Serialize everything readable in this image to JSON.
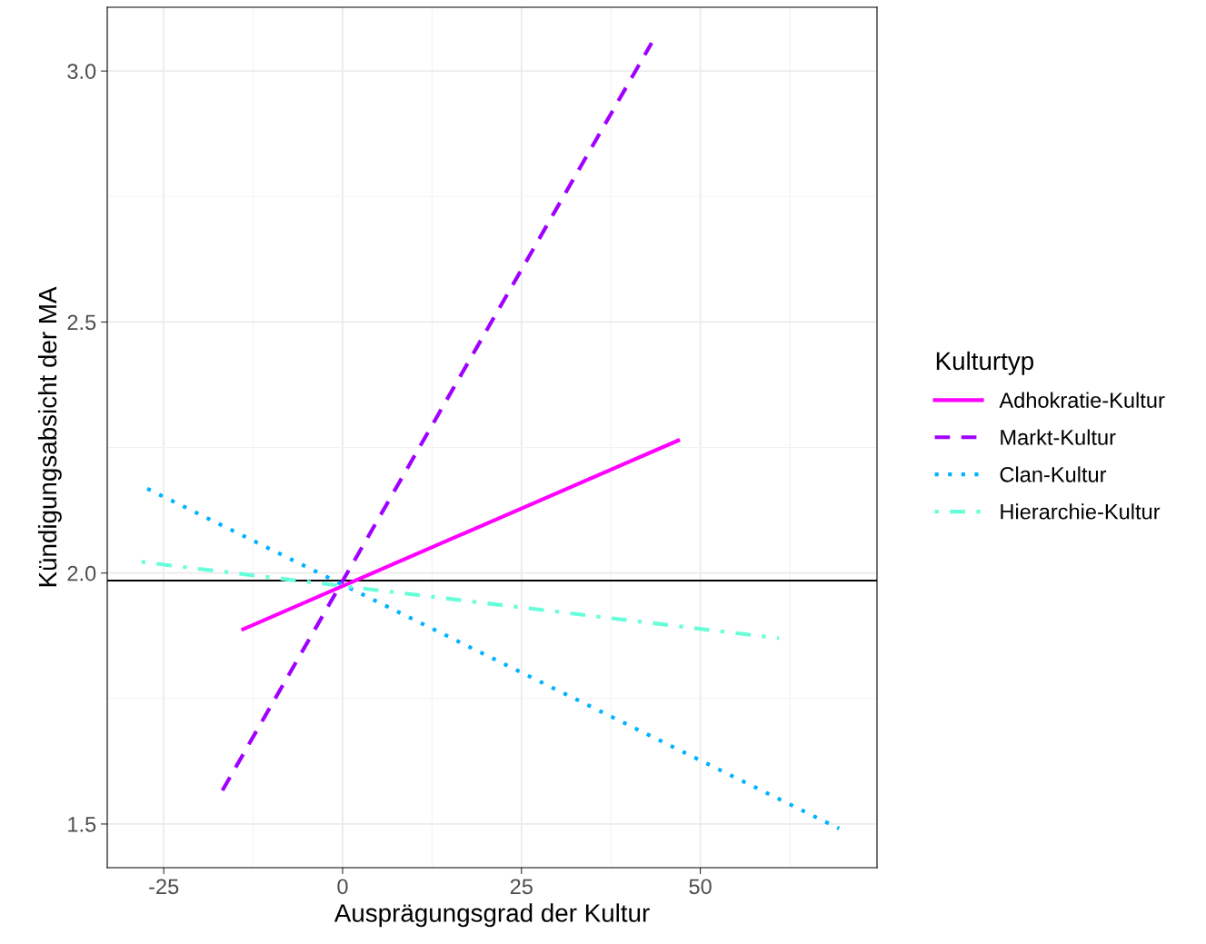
{
  "chart_data": {
    "type": "line",
    "xlabel": "Ausprägungsgrad der Kultur",
    "ylabel": "Kündigungsabsicht der MA",
    "legend_title": "Kulturtyp",
    "legend": "right",
    "grid": true,
    "xlim": [
      -32.9,
      74.7
    ],
    "xticks": [
      -25,
      0,
      25,
      50
    ],
    "ylim": [
      1.413,
      3.127
    ],
    "yticks": [
      {
        "value": 1.5,
        "label": "1.5"
      },
      {
        "value": 2.0,
        "label": "2.0"
      },
      {
        "value": 2.5,
        "label": "2.5"
      },
      {
        "value": 3.0,
        "label": "3.0"
      }
    ],
    "ref_lines": [
      {
        "axis": "y",
        "value": 1.985,
        "color": "#000000",
        "line_style": "solid"
      }
    ],
    "series": [
      {
        "name": "Adhokratie-Kultur",
        "color": "#ff00ff",
        "line_style": "solid",
        "x": [
          -13.9,
          46.9
        ],
        "values": [
          1.888,
          2.264
        ]
      },
      {
        "name": "Markt-Kultur",
        "color": "#a000ff",
        "line_style": "dashed",
        "x": [
          -16.8,
          43.2
        ],
        "values": [
          1.567,
          3.056
        ]
      },
      {
        "name": "Clan-Kultur",
        "color": "#00b2ff",
        "line_style": "dotted",
        "x": [
          -27.3,
          69.4
        ],
        "values": [
          2.168,
          1.491
        ]
      },
      {
        "name": "Hierarchie-Kultur",
        "color": "#66ffd9",
        "line_style": "dashdot",
        "x": [
          -28.1,
          61.0
        ],
        "values": [
          2.022,
          1.87
        ]
      }
    ]
  }
}
